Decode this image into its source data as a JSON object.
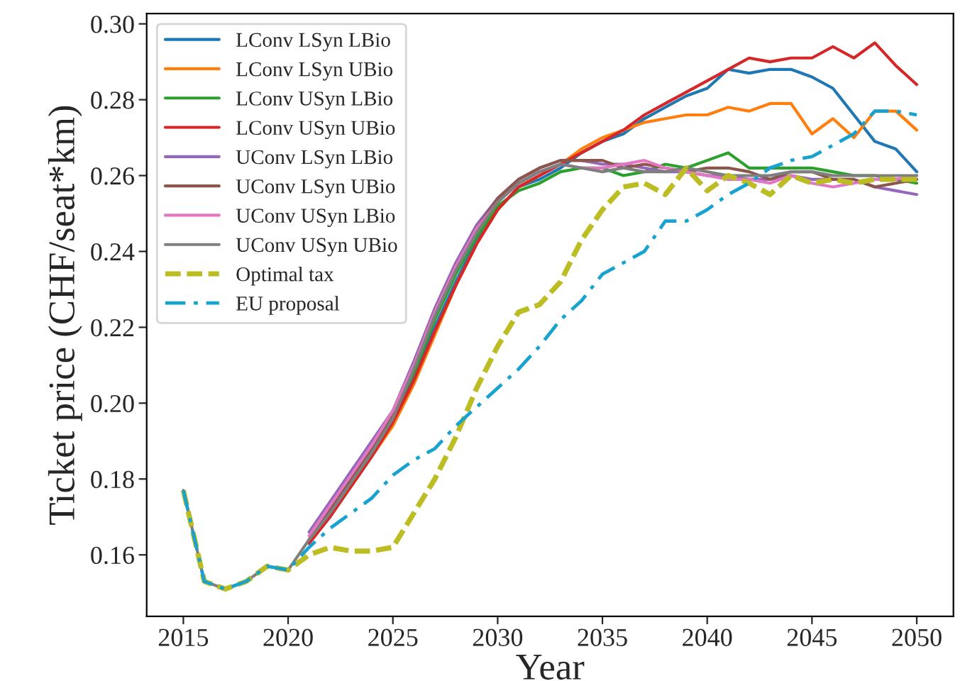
{
  "chart_data": {
    "type": "line",
    "xlabel": "Year",
    "ylabel": "Ticket price (CHF/seat*km)",
    "x": [
      2015,
      2016,
      2017,
      2018,
      2019,
      2020,
      2021,
      2022,
      2023,
      2024,
      2025,
      2026,
      2027,
      2028,
      2029,
      2030,
      2031,
      2032,
      2033,
      2034,
      2035,
      2036,
      2037,
      2038,
      2039,
      2040,
      2041,
      2042,
      2043,
      2044,
      2045,
      2046,
      2047,
      2048,
      2049,
      2050
    ],
    "xlim": [
      2013.25,
      2051.75
    ],
    "xticks": [
      2015,
      2020,
      2025,
      2030,
      2035,
      2040,
      2045,
      2050
    ],
    "ylim": [
      0.1438,
      0.3027
    ],
    "yticks": [
      {
        "value": 0.16,
        "label": "0.16"
      },
      {
        "value": 0.18,
        "label": "0.18"
      },
      {
        "value": 0.2,
        "label": "0.20"
      },
      {
        "value": 0.22,
        "label": "0.22"
      },
      {
        "value": 0.24,
        "label": "0.24"
      },
      {
        "value": 0.26,
        "label": "0.26"
      },
      {
        "value": 0.28,
        "label": "0.28"
      },
      {
        "value": 0.3,
        "label": "0.30"
      }
    ],
    "grid": false,
    "legend": "top left",
    "marker": "none",
    "series": [
      {
        "name": "LConv LSyn LBio",
        "color": "#1f77b4",
        "line_style": "solid",
        "values": [
          null,
          null,
          null,
          null,
          null,
          null,
          null,
          null,
          null,
          null,
          0.196,
          0.207,
          0.22,
          0.232,
          0.243,
          0.251,
          0.257,
          0.259,
          0.262,
          0.266,
          0.269,
          0.271,
          0.275,
          0.278,
          0.281,
          0.283,
          0.288,
          0.287,
          0.288,
          0.288,
          0.286,
          0.283,
          0.276,
          0.269,
          0.267,
          0.261
        ]
      },
      {
        "name": "LConv LSyn UBio",
        "color": "#ff7f0e",
        "line_style": "solid",
        "values": [
          null,
          null,
          null,
          null,
          null,
          null,
          0.164,
          0.171,
          0.178,
          0.186,
          0.194,
          0.205,
          0.218,
          0.231,
          0.242,
          0.251,
          0.257,
          0.26,
          0.263,
          0.267,
          0.27,
          0.272,
          0.274,
          0.275,
          0.276,
          0.276,
          0.278,
          0.277,
          0.279,
          0.279,
          0.271,
          0.275,
          0.27,
          0.277,
          0.277,
          0.272
        ]
      },
      {
        "name": "LConv USyn LBio",
        "color": "#2ca02c",
        "line_style": "solid",
        "values": [
          null,
          null,
          null,
          null,
          null,
          null,
          null,
          null,
          null,
          null,
          0.197,
          0.208,
          0.222,
          0.234,
          0.244,
          0.252,
          0.256,
          0.258,
          0.261,
          0.262,
          0.262,
          0.26,
          0.261,
          0.263,
          0.262,
          0.264,
          0.266,
          0.262,
          0.262,
          0.262,
          0.262,
          0.261,
          0.26,
          0.26,
          0.259,
          0.258
        ]
      },
      {
        "name": "LConv USyn UBio",
        "color": "#d62728",
        "line_style": "solid",
        "values": [
          null,
          null,
          null,
          null,
          null,
          null,
          0.163,
          0.17,
          0.178,
          0.186,
          0.195,
          0.206,
          0.219,
          0.231,
          0.242,
          0.251,
          0.257,
          0.26,
          0.263,
          0.266,
          0.269,
          0.272,
          0.276,
          0.279,
          0.282,
          0.285,
          0.288,
          0.291,
          0.29,
          0.291,
          0.291,
          0.294,
          0.291,
          0.295,
          0.289,
          0.284
        ]
      },
      {
        "name": "UConv LSyn LBio",
        "color": "#9467bd",
        "line_style": "solid",
        "values": [
          null,
          null,
          null,
          null,
          null,
          null,
          0.166,
          0.174,
          0.182,
          0.19,
          0.198,
          0.211,
          0.225,
          0.237,
          0.247,
          0.254,
          0.259,
          0.262,
          0.264,
          0.264,
          0.263,
          0.263,
          0.262,
          0.261,
          0.261,
          0.26,
          0.26,
          0.259,
          0.259,
          0.26,
          0.259,
          0.259,
          0.259,
          0.257,
          0.256,
          0.255
        ]
      },
      {
        "name": "UConv LSyn UBio",
        "color": "#8c564b",
        "line_style": "solid",
        "values": [
          null,
          null,
          null,
          null,
          null,
          null,
          0.164,
          0.172,
          0.18,
          0.188,
          0.197,
          0.21,
          0.224,
          0.236,
          0.246,
          0.254,
          0.259,
          0.262,
          0.264,
          0.264,
          0.264,
          0.262,
          0.263,
          0.262,
          0.261,
          0.262,
          0.262,
          0.261,
          0.259,
          0.261,
          0.261,
          0.259,
          0.259,
          0.257,
          0.258,
          0.259
        ]
      },
      {
        "name": "UConv USyn LBio",
        "color": "#e377c2",
        "line_style": "solid",
        "values": [
          null,
          null,
          null,
          null,
          null,
          null,
          0.165,
          0.173,
          0.181,
          0.189,
          0.198,
          0.21,
          0.224,
          0.236,
          0.246,
          0.253,
          0.258,
          0.261,
          0.263,
          0.262,
          0.262,
          0.263,
          0.264,
          0.262,
          0.261,
          0.26,
          0.259,
          0.259,
          0.258,
          0.26,
          0.258,
          0.257,
          0.258,
          0.259,
          0.259,
          0.26
        ]
      },
      {
        "name": "UConv USyn UBio",
        "color": "#7f7f7f",
        "line_style": "solid",
        "values": [
          0.177,
          0.153,
          0.151,
          0.153,
          0.157,
          0.156,
          0.164,
          0.171,
          0.179,
          0.187,
          0.196,
          0.209,
          0.223,
          0.235,
          0.245,
          0.253,
          0.258,
          0.261,
          0.263,
          0.262,
          0.261,
          0.262,
          0.261,
          0.261,
          0.262,
          0.261,
          0.26,
          0.26,
          0.26,
          0.261,
          0.261,
          0.26,
          0.26,
          0.26,
          0.26,
          0.26
        ]
      },
      {
        "name": "Optimal tax",
        "color": "#bcbd22",
        "line_style": "dashed",
        "values": [
          0.177,
          0.153,
          0.151,
          0.153,
          0.157,
          0.156,
          0.16,
          0.162,
          0.161,
          0.161,
          0.162,
          0.171,
          0.18,
          0.191,
          0.204,
          0.215,
          0.224,
          0.226,
          0.232,
          0.243,
          0.251,
          0.257,
          0.258,
          0.255,
          0.262,
          0.256,
          0.26,
          0.258,
          0.255,
          0.26,
          0.258,
          0.259,
          0.258,
          0.259,
          0.259,
          0.259
        ]
      },
      {
        "name": "EU proposal",
        "color": "#17a2d0",
        "line_style": "dashdot",
        "values": [
          0.177,
          0.153,
          0.151,
          0.153,
          0.157,
          0.156,
          0.162,
          0.167,
          0.171,
          0.175,
          0.181,
          0.185,
          0.188,
          0.194,
          0.199,
          0.204,
          0.209,
          0.215,
          0.222,
          0.227,
          0.234,
          0.237,
          0.24,
          0.248,
          0.248,
          0.251,
          0.255,
          0.258,
          0.262,
          0.264,
          0.265,
          0.268,
          0.271,
          0.277,
          0.277,
          0.276
        ]
      }
    ]
  }
}
